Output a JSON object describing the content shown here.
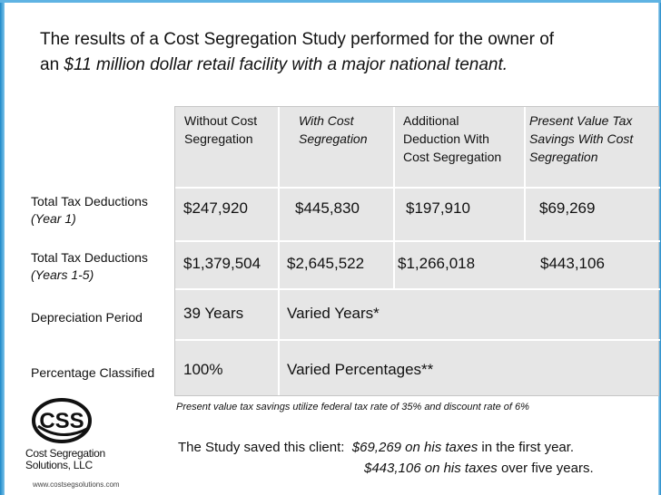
{
  "title": {
    "line1": "The results of a Cost Segregation Study performed for the owner of",
    "line2_prefix": "an ",
    "line2_italic": "$11 million dollar retail facility with a major national tenant."
  },
  "table": {
    "headers": [
      {
        "line1": "Without Cost",
        "line2": "Segregation",
        "line3": ""
      },
      {
        "line1": "With Cost",
        "line2": "Segregation",
        "line3": ""
      },
      {
        "line1": "Additional",
        "line2": "Deduction With",
        "line3": "Cost Segregation"
      },
      {
        "line1": "Present Value Tax",
        "line2": "Savings With Cost",
        "line3": "Segregation"
      }
    ],
    "rows": [
      {
        "label": "Total Tax Deductions",
        "sublabel": "(Year 1)",
        "cells": [
          "$247,920",
          "$445,830",
          "$197,910",
          "$69,269"
        ]
      },
      {
        "label": "Total Tax Deductions",
        "sublabel": "(Years 1-5)",
        "cells": [
          "$1,379,504",
          "$2,645,522",
          "$1,266,018",
          "$443,106"
        ]
      },
      {
        "label": "Depreciation Period",
        "sublabel": "",
        "cells": [
          "39 Years",
          "Varied Years*"
        ]
      },
      {
        "label": "Percentage Classified",
        "sublabel": "",
        "cells": [
          "100%",
          "Varied Percentages**"
        ]
      }
    ]
  },
  "footnote": "Present value tax savings utilize federal tax rate of 35% and discount rate of 6%",
  "saved": {
    "prefix": "The Study saved this client:",
    "amount1": "$69,269 on his taxes",
    "suffix1": " in the first year.",
    "amount2": "$443,106 on his taxes",
    "suffix2": " over five years."
  },
  "logo": {
    "letters": "CSS",
    "name_line1": "Cost Segregation",
    "name_line2": "Solutions, LLC",
    "url": "www.costsegsolutions.com"
  },
  "colors": {
    "accent": "#1e88c8",
    "table_bg": "#e6e6e6",
    "grid": "#ffffff"
  }
}
